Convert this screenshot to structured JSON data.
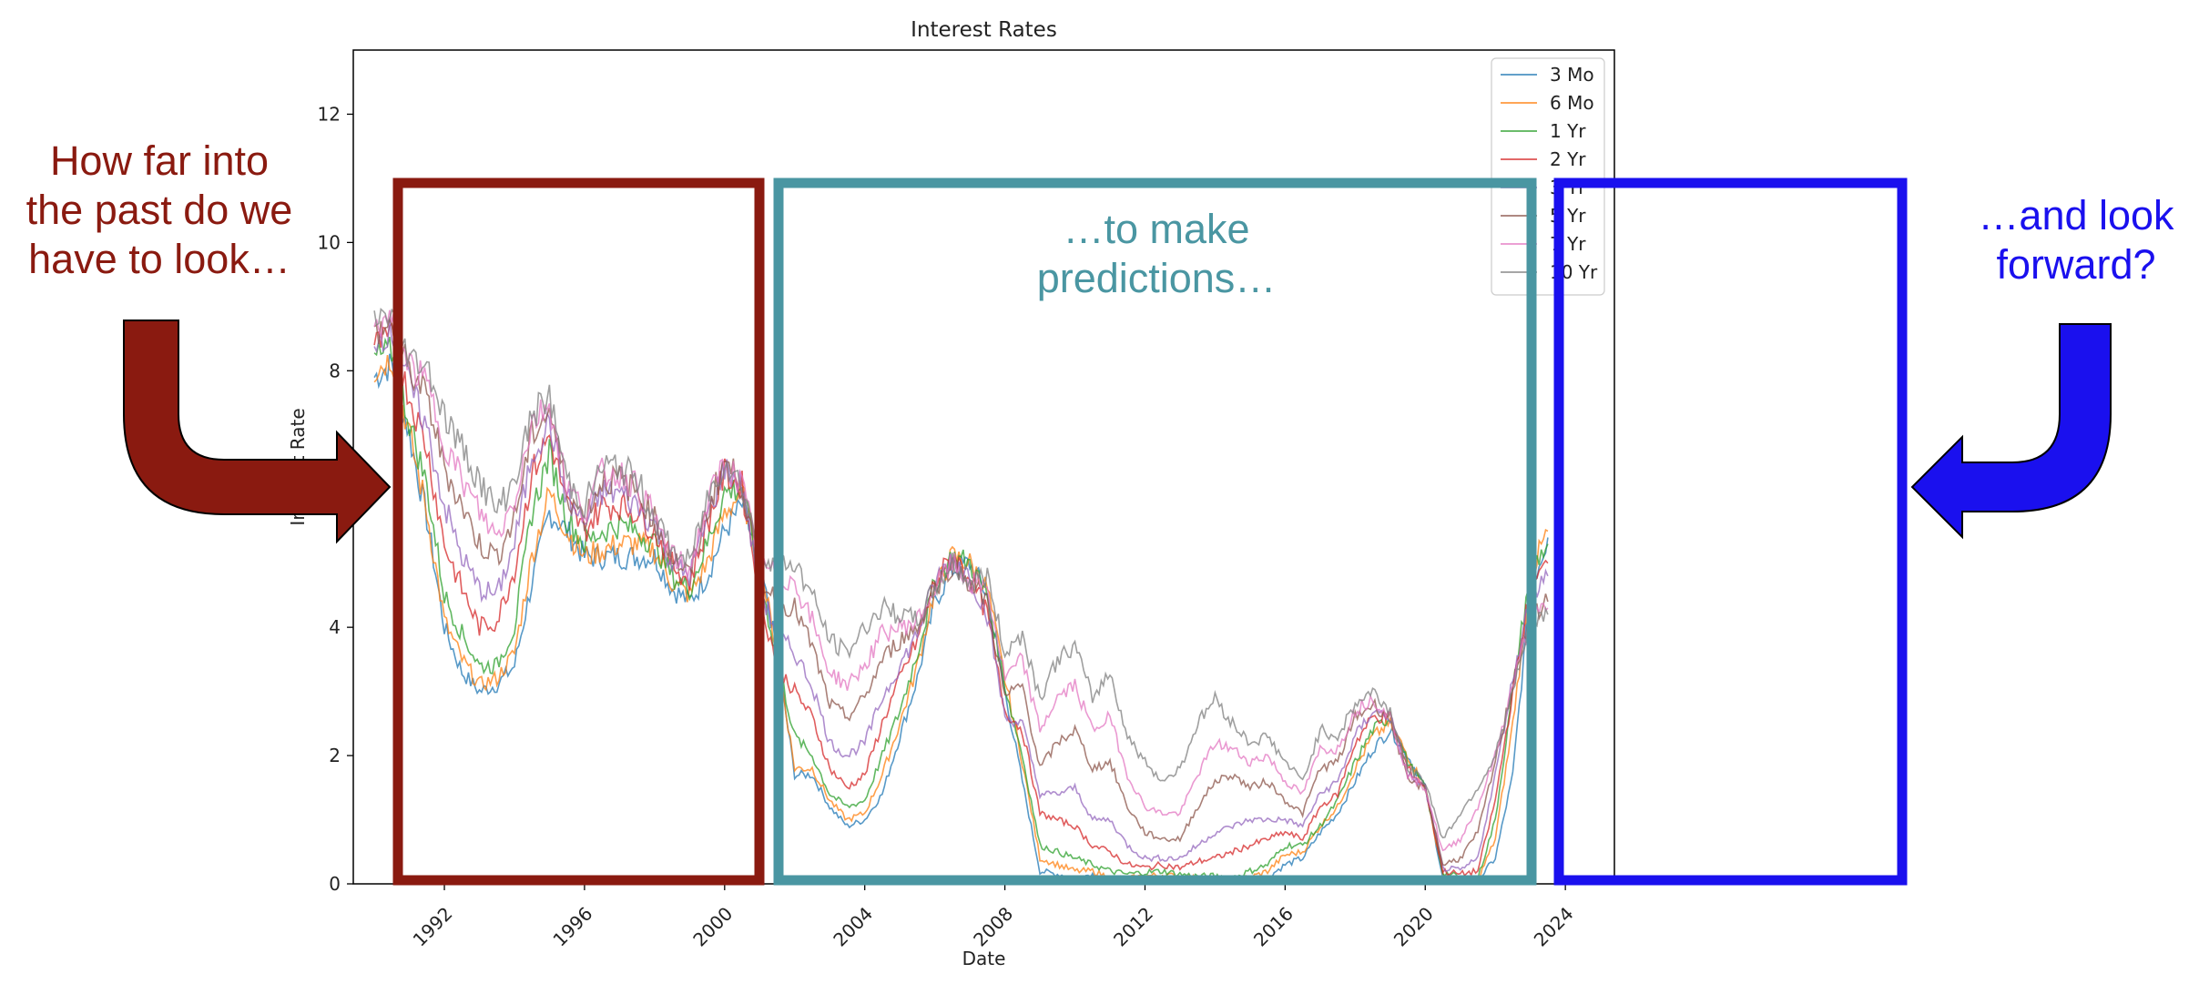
{
  "chart_data": {
    "type": "line",
    "title": "Interest Rates",
    "xlabel": "Date",
    "ylabel": "Interest Rate",
    "xlim": [
      1989.4,
      2025.4
    ],
    "ylim": [
      0,
      13
    ],
    "xticks": [
      "1992",
      "1996",
      "2000",
      "2004",
      "2008",
      "2012",
      "2016",
      "2020",
      "2024"
    ],
    "yticks": [
      "0",
      "2",
      "4",
      "6",
      "8",
      "10",
      "12"
    ],
    "legend_position": "top-right",
    "grid": false,
    "x": [
      1990.0,
      1990.5,
      1991.0,
      1991.5,
      1992.0,
      1992.5,
      1993.0,
      1993.5,
      1994.0,
      1994.5,
      1995.0,
      1995.5,
      1996.0,
      1996.5,
      1997.0,
      1997.5,
      1998.0,
      1998.5,
      1999.0,
      1999.5,
      2000.0,
      2000.5,
      2001.0,
      2001.5,
      2002.0,
      2002.5,
      2003.0,
      2003.5,
      2004.0,
      2004.5,
      2005.0,
      2005.5,
      2006.0,
      2006.5,
      2007.0,
      2007.5,
      2008.0,
      2008.5,
      2009.0,
      2009.5,
      2010.0,
      2010.5,
      2011.0,
      2011.5,
      2012.0,
      2012.5,
      2013.0,
      2013.5,
      2014.0,
      2014.5,
      2015.0,
      2015.5,
      2016.0,
      2016.5,
      2017.0,
      2017.5,
      2018.0,
      2018.5,
      2019.0,
      2019.5,
      2020.0,
      2020.5,
      2021.0,
      2021.5,
      2022.0,
      2022.5,
      2023.0,
      2023.5
    ],
    "series": [
      {
        "name": "3 Mo",
        "color": "#1f77b4",
        "values": [
          7.9,
          8.1,
          7.0,
          5.7,
          4.0,
          3.3,
          3.0,
          3.1,
          3.4,
          4.7,
          5.8,
          5.5,
          5.1,
          5.1,
          5.1,
          5.1,
          5.1,
          4.6,
          4.4,
          4.8,
          5.5,
          5.9,
          5.0,
          3.6,
          1.7,
          1.7,
          1.2,
          0.9,
          1.0,
          1.4,
          2.3,
          3.2,
          4.4,
          4.9,
          5.0,
          4.5,
          3.0,
          1.6,
          0.2,
          0.15,
          0.1,
          0.15,
          0.05,
          0.02,
          0.08,
          0.09,
          0.06,
          0.04,
          0.04,
          0.03,
          0.02,
          0.1,
          0.3,
          0.4,
          0.8,
          1.1,
          1.6,
          2.1,
          2.4,
          2.0,
          1.5,
          0.1,
          0.05,
          0.05,
          0.4,
          1.7,
          4.6,
          5.4
        ]
      },
      {
        "name": "6 Mo",
        "color": "#ff7f0e",
        "values": [
          8.0,
          8.2,
          7.0,
          5.8,
          4.1,
          3.5,
          3.1,
          3.2,
          3.6,
          5.1,
          6.1,
          5.5,
          5.1,
          5.2,
          5.3,
          5.3,
          5.2,
          4.7,
          4.5,
          5.0,
          5.8,
          6.1,
          5.0,
          3.6,
          1.8,
          1.8,
          1.3,
          1.0,
          1.1,
          1.7,
          2.5,
          3.4,
          4.6,
          5.1,
          5.0,
          4.6,
          3.2,
          1.9,
          0.4,
          0.3,
          0.2,
          0.2,
          0.1,
          0.08,
          0.12,
          0.14,
          0.11,
          0.08,
          0.07,
          0.06,
          0.1,
          0.2,
          0.45,
          0.5,
          0.9,
          1.2,
          1.8,
          2.3,
          2.5,
          2.0,
          1.5,
          0.15,
          0.06,
          0.06,
          0.7,
          2.5,
          4.8,
          5.5
        ]
      },
      {
        "name": "1 Yr",
        "color": "#2ca02c",
        "values": [
          8.2,
          8.3,
          7.2,
          6.2,
          4.5,
          3.9,
          3.4,
          3.4,
          4.0,
          5.8,
          6.7,
          5.7,
          5.3,
          5.5,
          5.6,
          5.5,
          5.3,
          4.8,
          4.6,
          5.3,
          6.1,
          6.2,
          4.8,
          3.5,
          2.3,
          2.0,
          1.4,
          1.2,
          1.3,
          2.0,
          2.7,
          3.6,
          4.7,
          5.1,
          5.0,
          4.5,
          3.1,
          2.0,
          0.6,
          0.5,
          0.4,
          0.3,
          0.2,
          0.15,
          0.18,
          0.2,
          0.15,
          0.12,
          0.12,
          0.1,
          0.2,
          0.3,
          0.6,
          0.6,
          0.9,
          1.3,
          1.9,
          2.4,
          2.6,
          1.9,
          1.5,
          0.18,
          0.1,
          0.08,
          1.0,
          3.0,
          4.9,
          5.3
        ]
      },
      {
        "name": "2 Yr",
        "color": "#d62728",
        "values": [
          8.4,
          8.5,
          7.6,
          6.8,
          5.3,
          4.6,
          4.0,
          4.1,
          4.9,
          6.4,
          7.0,
          5.9,
          5.5,
          5.9,
          5.9,
          5.8,
          5.5,
          5.0,
          4.7,
          5.6,
          6.4,
          6.2,
          4.5,
          3.4,
          3.0,
          2.6,
          1.8,
          1.5,
          1.7,
          2.5,
          3.2,
          3.8,
          4.7,
          5.1,
          4.8,
          4.2,
          2.7,
          2.4,
          1.1,
          1.0,
          0.9,
          0.6,
          0.5,
          0.3,
          0.25,
          0.3,
          0.25,
          0.35,
          0.4,
          0.5,
          0.6,
          0.7,
          0.8,
          0.7,
          1.2,
          1.4,
          2.2,
          2.6,
          2.6,
          1.8,
          1.5,
          0.2,
          0.15,
          0.2,
          1.3,
          3.0,
          4.6,
          5.0
        ]
      },
      {
        "name": "3 Yr",
        "color": "#9467bd",
        "values": [
          8.5,
          8.6,
          7.8,
          7.1,
          5.9,
          5.1,
          4.6,
          4.5,
          5.3,
          6.7,
          7.2,
          6.0,
          5.6,
          6.1,
          6.1,
          5.9,
          5.6,
          5.0,
          4.8,
          5.7,
          6.5,
          6.2,
          4.6,
          3.9,
          3.6,
          3.1,
          2.2,
          2.0,
          2.2,
          2.9,
          3.4,
          3.9,
          4.7,
          5.1,
          4.8,
          4.2,
          2.6,
          2.5,
          1.4,
          1.4,
          1.5,
          1.0,
          1.0,
          0.6,
          0.4,
          0.4,
          0.4,
          0.6,
          0.8,
          0.9,
          1.0,
          1.0,
          1.0,
          0.9,
          1.4,
          1.6,
          2.3,
          2.7,
          2.6,
          1.7,
          1.5,
          0.25,
          0.2,
          0.4,
          1.7,
          3.2,
          4.5,
          4.8
        ]
      },
      {
        "name": "5 Yr",
        "color": "#8c564b",
        "values": [
          8.6,
          8.7,
          8.0,
          7.6,
          6.5,
          5.9,
          5.3,
          5.1,
          5.7,
          7.0,
          7.4,
          6.1,
          5.7,
          6.3,
          6.3,
          6.1,
          5.7,
          5.1,
          4.8,
          5.8,
          6.6,
          6.2,
          4.8,
          4.4,
          4.3,
          3.7,
          2.8,
          2.6,
          2.9,
          3.5,
          3.8,
          4.0,
          4.6,
          5.0,
          4.7,
          4.4,
          2.9,
          3.1,
          1.8,
          2.2,
          2.4,
          1.8,
          1.9,
          1.2,
          0.8,
          0.7,
          0.7,
          1.2,
          1.6,
          1.7,
          1.5,
          1.6,
          1.3,
          1.1,
          1.8,
          1.9,
          2.6,
          2.8,
          2.6,
          1.6,
          1.5,
          0.3,
          0.4,
          0.8,
          1.9,
          3.1,
          4.2,
          4.4
        ]
      },
      {
        "name": "7 Yr",
        "color": "#e377c2",
        "values": [
          8.7,
          8.8,
          8.1,
          7.8,
          6.9,
          6.3,
          5.8,
          5.4,
          6.0,
          7.2,
          7.5,
          6.2,
          5.8,
          6.4,
          6.4,
          6.2,
          5.7,
          5.1,
          4.9,
          5.9,
          6.6,
          6.2,
          5.0,
          4.8,
          4.7,
          4.1,
          3.3,
          3.1,
          3.4,
          3.9,
          4.0,
          4.1,
          4.6,
          5.0,
          4.7,
          4.6,
          3.2,
          3.5,
          2.4,
          2.9,
          3.1,
          2.4,
          2.6,
          1.7,
          1.2,
          1.1,
          1.1,
          1.7,
          2.2,
          2.1,
          1.9,
          2.0,
          1.6,
          1.4,
          2.1,
          2.1,
          2.7,
          2.9,
          2.6,
          1.7,
          1.5,
          0.5,
          0.7,
          1.2,
          2.0,
          3.1,
          4.1,
          4.3
        ]
      },
      {
        "name": "10 Yr",
        "color": "#7f7f7f",
        "values": [
          8.8,
          8.9,
          8.2,
          8.1,
          7.3,
          6.8,
          6.3,
          5.8,
          6.3,
          7.3,
          7.6,
          6.3,
          5.9,
          6.5,
          6.5,
          6.3,
          5.7,
          5.2,
          5.0,
          6.0,
          6.6,
          6.2,
          5.2,
          5.0,
          5.0,
          4.5,
          3.8,
          3.6,
          4.0,
          4.3,
          4.2,
          4.1,
          4.6,
          5.0,
          4.7,
          4.8,
          3.6,
          3.9,
          2.9,
          3.5,
          3.7,
          2.9,
          3.3,
          2.3,
          1.9,
          1.6,
          1.8,
          2.5,
          2.9,
          2.5,
          2.2,
          2.3,
          1.9,
          1.6,
          2.4,
          2.3,
          2.8,
          3.0,
          2.7,
          1.8,
          1.6,
          0.7,
          1.1,
          1.5,
          2.0,
          3.0,
          4.0,
          4.2
        ]
      }
    ]
  },
  "annotations": {
    "past": {
      "lines": [
        "How far into",
        "the past do we",
        "have to look…"
      ],
      "color": "#8a1a10"
    },
    "middle": {
      "lines": [
        "…to make",
        "predictions…"
      ],
      "color": "#4a96a2"
    },
    "forward": {
      "lines": [
        "…and look",
        "forward?"
      ],
      "color": "#1a10ee"
    }
  }
}
